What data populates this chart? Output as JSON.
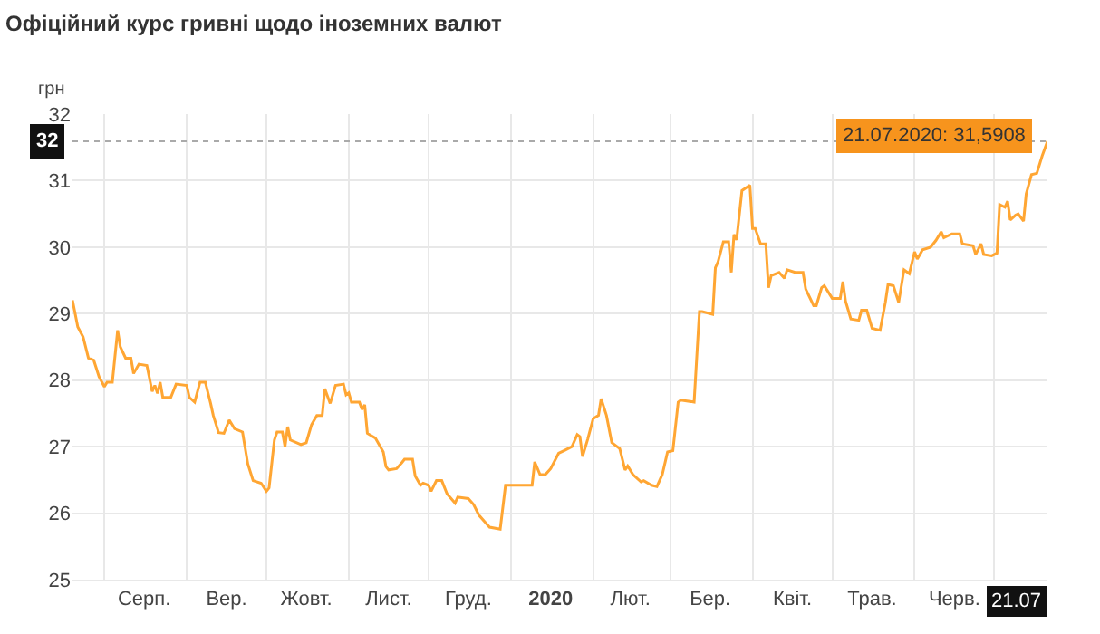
{
  "chart_data": {
    "type": "line",
    "title": "Офіційний курс гривні щодо іноземних валют",
    "ylabel": "грн",
    "x": [
      "2019-07-20",
      "2019-07-22",
      "2019-07-24",
      "2019-07-26",
      "2019-07-28",
      "2019-07-30",
      "2019-08-01",
      "2019-08-02",
      "2019-08-04",
      "2019-08-06",
      "2019-08-07",
      "2019-08-09",
      "2019-08-11",
      "2019-08-12",
      "2019-08-14",
      "2019-08-17",
      "2019-08-19",
      "2019-08-20",
      "2019-08-21",
      "2019-08-22",
      "2019-08-23",
      "2019-08-26",
      "2019-08-28",
      "2019-09-01",
      "2019-09-02",
      "2019-09-04",
      "2019-09-06",
      "2019-09-08",
      "2019-09-10",
      "2019-09-11",
      "2019-09-13",
      "2019-09-15",
      "2019-09-17",
      "2019-09-19",
      "2019-09-22",
      "2019-09-24",
      "2019-09-26",
      "2019-09-29",
      "2019-10-01",
      "2019-10-02",
      "2019-10-04",
      "2019-10-05",
      "2019-10-07",
      "2019-10-08",
      "2019-10-09",
      "2019-10-10",
      "2019-10-14",
      "2019-10-16",
      "2019-10-18",
      "2019-10-20",
      "2019-10-22",
      "2019-10-23",
      "2019-10-25",
      "2019-10-27",
      "2019-10-30",
      "2019-10-31",
      "2019-11-01",
      "2019-11-02",
      "2019-11-05",
      "2019-11-06",
      "2019-11-07",
      "2019-11-08",
      "2019-11-11",
      "2019-11-14",
      "2019-11-15",
      "2019-11-16",
      "2019-11-19",
      "2019-11-21",
      "2019-11-22",
      "2019-11-25",
      "2019-11-26",
      "2019-11-28",
      "2019-11-29",
      "2019-12-01",
      "2019-12-02",
      "2019-12-04",
      "2019-12-06",
      "2019-12-08",
      "2019-12-11",
      "2019-12-12",
      "2019-12-16",
      "2019-12-18",
      "2019-12-20",
      "2019-12-22",
      "2019-12-24",
      "2019-12-28",
      "2019-12-30",
      "2020-01-01",
      "2020-01-09",
      "2020-01-10",
      "2020-01-12",
      "2020-01-14",
      "2020-01-16",
      "2020-01-19",
      "2020-01-21",
      "2020-01-24",
      "2020-01-26",
      "2020-01-27",
      "2020-01-28",
      "2020-01-30",
      "2020-02-01",
      "2020-02-03",
      "2020-02-04",
      "2020-02-06",
      "2020-02-08",
      "2020-02-11",
      "2020-02-13",
      "2020-02-14",
      "2020-02-16",
      "2020-02-19",
      "2020-02-20",
      "2020-02-23",
      "2020-02-25",
      "2020-02-27",
      "2020-02-29",
      "2020-03-02",
      "2020-03-04",
      "2020-03-05",
      "2020-03-10",
      "2020-03-12",
      "2020-03-13",
      "2020-03-17",
      "2020-03-18",
      "2020-03-19",
      "2020-03-21",
      "2020-03-23",
      "2020-03-24",
      "2020-03-25",
      "2020-03-26",
      "2020-03-28",
      "2020-03-31",
      "2020-04-01",
      "2020-04-02",
      "2020-04-04",
      "2020-04-06",
      "2020-04-07",
      "2020-04-08",
      "2020-04-11",
      "2020-04-13",
      "2020-04-14",
      "2020-04-17",
      "2020-04-20",
      "2020-04-21",
      "2020-04-24",
      "2020-04-25",
      "2020-04-27",
      "2020-04-28",
      "2020-05-01",
      "2020-05-04",
      "2020-05-05",
      "2020-05-06",
      "2020-05-08",
      "2020-05-11",
      "2020-05-12",
      "2020-05-14",
      "2020-05-16",
      "2020-05-19",
      "2020-05-21",
      "2020-05-22",
      "2020-05-24",
      "2020-05-26",
      "2020-05-28",
      "2020-05-30",
      "2020-06-01",
      "2020-06-02",
      "2020-06-04",
      "2020-06-07",
      "2020-06-09",
      "2020-06-11",
      "2020-06-12",
      "2020-06-15",
      "2020-06-18",
      "2020-06-19",
      "2020-06-23",
      "2020-06-24",
      "2020-06-26",
      "2020-06-27",
      "2020-06-30",
      "2020-07-02",
      "2020-07-03",
      "2020-07-05",
      "2020-07-06",
      "2020-07-07",
      "2020-07-09",
      "2020-07-10",
      "2020-07-12",
      "2020-07-13",
      "2020-07-15",
      "2020-07-17",
      "2020-07-19",
      "2020-07-21"
    ],
    "series": [
      {
        "color": "#ffa633",
        "values": [
          29.2,
          28.8,
          28.65,
          28.33,
          28.3,
          28.05,
          27.9,
          27.97,
          27.97,
          28.75,
          28.5,
          28.33,
          28.33,
          28.1,
          28.24,
          28.22,
          27.83,
          27.92,
          27.8,
          27.97,
          27.74,
          27.74,
          27.94,
          27.92,
          27.74,
          27.67,
          27.97,
          27.97,
          27.65,
          27.47,
          27.21,
          27.2,
          27.4,
          27.27,
          27.22,
          26.74,
          26.49,
          26.45,
          26.33,
          26.38,
          27.1,
          27.22,
          27.22,
          27.0,
          27.3,
          27.1,
          27.03,
          27.06,
          27.33,
          27.47,
          27.47,
          27.87,
          27.65,
          27.92,
          27.94,
          27.78,
          27.81,
          27.67,
          27.67,
          27.56,
          27.63,
          27.2,
          27.13,
          26.92,
          26.7,
          26.65,
          26.67,
          26.76,
          26.81,
          26.81,
          26.56,
          26.42,
          26.45,
          26.42,
          26.33,
          26.49,
          26.49,
          26.29,
          26.15,
          26.24,
          26.22,
          26.13,
          25.97,
          25.88,
          25.79,
          25.76,
          26.42,
          26.42,
          26.42,
          26.77,
          26.58,
          26.58,
          26.67,
          26.9,
          26.94,
          27.0,
          27.18,
          27.15,
          26.85,
          27.12,
          27.42,
          27.47,
          27.72,
          27.47,
          27.06,
          26.97,
          26.65,
          26.71,
          26.58,
          26.47,
          26.49,
          26.42,
          26.4,
          26.58,
          26.92,
          26.94,
          27.67,
          27.7,
          27.67,
          29.03,
          29.03,
          28.99,
          29.69,
          29.78,
          30.08,
          30.08,
          29.62,
          30.19,
          30.11,
          30.85,
          30.93,
          30.28,
          30.28,
          30.05,
          30.05,
          29.39,
          29.57,
          29.62,
          29.53,
          29.66,
          29.62,
          29.62,
          29.37,
          29.12,
          29.12,
          29.39,
          29.42,
          29.23,
          29.23,
          29.48,
          29.19,
          28.92,
          28.9,
          29.05,
          29.05,
          28.78,
          28.75,
          29.17,
          29.44,
          29.42,
          29.17,
          29.66,
          29.6,
          29.93,
          29.82,
          29.96,
          30.0,
          30.1,
          30.23,
          30.14,
          30.2,
          30.2,
          30.05,
          30.02,
          29.89,
          30.05,
          29.89,
          29.87,
          29.91,
          30.64,
          30.6,
          30.69,
          30.41,
          30.48,
          30.5,
          30.39,
          30.8,
          31.09,
          31.11,
          31.37,
          31.5908
        ]
      }
    ],
    "xlim": [
      "2019-07-20",
      "2020-07-21"
    ],
    "xticks": [
      {
        "value": "2019-08-01",
        "label": null
      },
      {
        "value": "2019-08-16",
        "label": "Серп."
      },
      {
        "value": "2019-09-01",
        "label": null
      },
      {
        "value": "2019-09-16",
        "label": "Вер."
      },
      {
        "value": "2019-10-01",
        "label": null
      },
      {
        "value": "2019-10-16",
        "label": "Жовт."
      },
      {
        "value": "2019-11-01",
        "label": null
      },
      {
        "value": "2019-11-16",
        "label": "Лист."
      },
      {
        "value": "2019-12-01",
        "label": null
      },
      {
        "value": "2019-12-16",
        "label": "Груд."
      },
      {
        "value": "2020-01-01",
        "label": null
      },
      {
        "value": "2020-01-16",
        "label": "2020"
      },
      {
        "value": "2020-02-01",
        "label": null
      },
      {
        "value": "2020-02-15",
        "label": "Лют."
      },
      {
        "value": "2020-03-01",
        "label": null
      },
      {
        "value": "2020-03-16",
        "label": "Бер."
      },
      {
        "value": "2020-04-01",
        "label": null
      },
      {
        "value": "2020-04-16",
        "label": "Квіт."
      },
      {
        "value": "2020-05-01",
        "label": null
      },
      {
        "value": "2020-05-16",
        "label": "Трав."
      },
      {
        "value": "2020-06-01",
        "label": null
      },
      {
        "value": "2020-06-16",
        "label": "Черв."
      },
      {
        "value": "2020-07-01",
        "label": null
      },
      {
        "value": "2020-07-21",
        "label": "21.07"
      }
    ],
    "ylim": [
      25,
      32
    ],
    "yticks": [
      25,
      26,
      27,
      28,
      29,
      30,
      31,
      32
    ],
    "grid": true,
    "marker": "none",
    "line_style": "solid",
    "ref_lines": [
      {
        "axis": "y",
        "value": 31.5908,
        "label": "32",
        "line_style": "dotted"
      },
      {
        "axis": "x",
        "value": "2020-07-21",
        "line_style": "dotted"
      }
    ],
    "annotations": [
      {
        "text": "21.07.2020: 31,5908",
        "x": "2020-07-21",
        "y": 31.5908
      }
    ]
  }
}
